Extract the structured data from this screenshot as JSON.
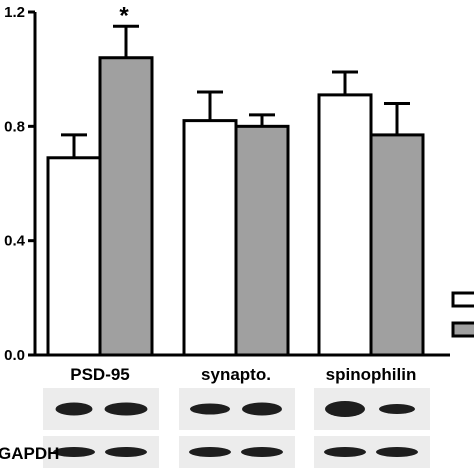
{
  "chart_data": {
    "type": "bar",
    "categories": [
      "PSD-95",
      "synapto.",
      "spinophilin"
    ],
    "series": [
      {
        "values": [
          0.69,
          0.82,
          0.91
        ],
        "errors": [
          0.08,
          0.1,
          0.08
        ],
        "color": "#ffffff"
      },
      {
        "values": [
          1.04,
          0.8,
          0.77
        ],
        "errors": [
          0.11,
          0.04,
          0.11
        ],
        "color": "#a0a0a0"
      }
    ],
    "ylim": [
      0,
      1.2
    ],
    "yticks": [
      0.0,
      0.4,
      0.8,
      1.2
    ],
    "ytick_labels": [
      "0.0",
      "0.4",
      "0.8",
      "1.2"
    ],
    "annotations": [
      {
        "category": 0,
        "series": 1,
        "text": "*"
      }
    ],
    "grid": false,
    "legend_location": "right",
    "blot_row_labels": [
      "",
      "GAPDH"
    ]
  }
}
